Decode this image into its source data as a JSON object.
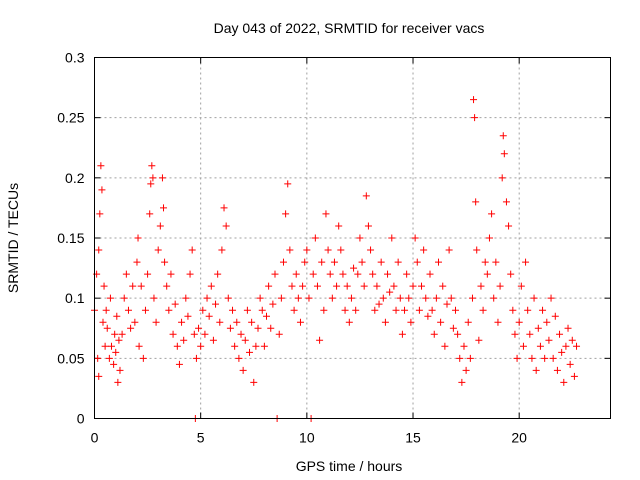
{
  "chart_data": {
    "type": "scatter",
    "title": "Day 043 of 2022, SRMTID for receiver vacs",
    "xlabel": "GPS time / hours",
    "ylabel": "SRMTID / TECUs",
    "xlim": [
      0,
      24.3
    ],
    "ylim": [
      0,
      0.3
    ],
    "xticks": [
      0,
      5,
      10,
      15,
      20
    ],
    "xtick_labels": [
      "0",
      "5",
      "10",
      "15",
      "20"
    ],
    "yticks": [
      0,
      0.05,
      0.1,
      0.15,
      0.2,
      0.25,
      0.3
    ],
    "ytick_labels": [
      "0",
      "0.05",
      "0.1",
      "0.15",
      "0.2",
      "0.25",
      "0.3"
    ],
    "grid": true,
    "marker": "+",
    "color": "#ff0000",
    "series": [
      {
        "name": "SRMTID",
        "points": [
          [
            0.0,
            0.09
          ],
          [
            0.1,
            0.12
          ],
          [
            0.15,
            0.05
          ],
          [
            0.2,
            0.14
          ],
          [
            0.2,
            0.035
          ],
          [
            0.25,
            0.17
          ],
          [
            0.3,
            0.21
          ],
          [
            0.35,
            0.19
          ],
          [
            0.4,
            0.08
          ],
          [
            0.45,
            0.11
          ],
          [
            0.5,
            0.06
          ],
          [
            0.55,
            0.09
          ],
          [
            0.6,
            0.075
          ],
          [
            0.7,
            0.05
          ],
          [
            0.75,
            0.1
          ],
          [
            0.8,
            0.06
          ],
          [
            0.9,
            0.045
          ],
          [
            0.95,
            0.07
          ],
          [
            1.0,
            0.055
          ],
          [
            1.05,
            0.085
          ],
          [
            1.1,
            0.03
          ],
          [
            1.15,
            0.065
          ],
          [
            1.2,
            0.04
          ],
          [
            1.3,
            0.07
          ],
          [
            1.4,
            0.1
          ],
          [
            1.5,
            0.12
          ],
          [
            1.6,
            0.09
          ],
          [
            1.7,
            0.075
          ],
          [
            1.8,
            0.11
          ],
          [
            1.9,
            0.08
          ],
          [
            2.0,
            0.13
          ],
          [
            2.05,
            0.15
          ],
          [
            2.1,
            0.06
          ],
          [
            2.2,
            0.11
          ],
          [
            2.3,
            0.05
          ],
          [
            2.4,
            0.09
          ],
          [
            2.5,
            0.12
          ],
          [
            2.6,
            0.17
          ],
          [
            2.65,
            0.195
          ],
          [
            2.7,
            0.21
          ],
          [
            2.75,
            0.2
          ],
          [
            2.8,
            0.1
          ],
          [
            2.9,
            0.08
          ],
          [
            3.0,
            0.14
          ],
          [
            3.1,
            0.16
          ],
          [
            3.2,
            0.2
          ],
          [
            3.25,
            0.175
          ],
          [
            3.3,
            0.13
          ],
          [
            3.4,
            0.11
          ],
          [
            3.5,
            0.09
          ],
          [
            3.6,
            0.12
          ],
          [
            3.7,
            0.07
          ],
          [
            3.8,
            0.095
          ],
          [
            3.9,
            0.06
          ],
          [
            4.0,
            0.045
          ],
          [
            4.1,
            0.08
          ],
          [
            4.2,
            0.065
          ],
          [
            4.3,
            0.1
          ],
          [
            4.4,
            0.085
          ],
          [
            4.5,
            0.12
          ],
          [
            4.6,
            0.14
          ],
          [
            4.7,
            0.07
          ],
          [
            4.75,
            0.0
          ],
          [
            4.8,
            0.05
          ],
          [
            4.9,
            0.075
          ],
          [
            5.0,
            0.06
          ],
          [
            5.1,
            0.09
          ],
          [
            5.2,
            0.07
          ],
          [
            5.3,
            0.1
          ],
          [
            5.4,
            0.085
          ],
          [
            5.5,
            0.11
          ],
          [
            5.6,
            0.065
          ],
          [
            5.7,
            0.095
          ],
          [
            5.8,
            0.12
          ],
          [
            5.9,
            0.08
          ],
          [
            6.0,
            0.14
          ],
          [
            6.1,
            0.175
          ],
          [
            6.2,
            0.16
          ],
          [
            6.3,
            0.1
          ],
          [
            6.4,
            0.075
          ],
          [
            6.5,
            0.09
          ],
          [
            6.6,
            0.06
          ],
          [
            6.7,
            0.08
          ],
          [
            6.8,
            0.05
          ],
          [
            6.9,
            0.07
          ],
          [
            7.0,
            0.04
          ],
          [
            7.1,
            0.065
          ],
          [
            7.2,
            0.09
          ],
          [
            7.3,
            0.055
          ],
          [
            7.4,
            0.08
          ],
          [
            7.5,
            0.03
          ],
          [
            7.6,
            0.06
          ],
          [
            7.7,
            0.075
          ],
          [
            7.8,
            0.1
          ],
          [
            7.9,
            0.09
          ],
          [
            8.0,
            0.06
          ],
          [
            8.1,
            0.085
          ],
          [
            8.2,
            0.11
          ],
          [
            8.3,
            0.075
          ],
          [
            8.4,
            0.095
          ],
          [
            8.5,
            0.12
          ],
          [
            8.6,
            0.0
          ],
          [
            8.7,
            0.07
          ],
          [
            8.8,
            0.1
          ],
          [
            8.9,
            0.13
          ],
          [
            9.0,
            0.17
          ],
          [
            9.1,
            0.195
          ],
          [
            9.2,
            0.14
          ],
          [
            9.3,
            0.11
          ],
          [
            9.4,
            0.09
          ],
          [
            9.5,
            0.12
          ],
          [
            9.6,
            0.1
          ],
          [
            9.7,
            0.08
          ],
          [
            9.8,
            0.11
          ],
          [
            9.9,
            0.13
          ],
          [
            10.0,
            0.14
          ],
          [
            10.1,
            0.1
          ],
          [
            10.2,
            0.0
          ],
          [
            10.3,
            0.12
          ],
          [
            10.4,
            0.15
          ],
          [
            10.5,
            0.11
          ],
          [
            10.6,
            0.065
          ],
          [
            10.7,
            0.13
          ],
          [
            10.8,
            0.09
          ],
          [
            10.9,
            0.17
          ],
          [
            11.0,
            0.14
          ],
          [
            11.1,
            0.12
          ],
          [
            11.2,
            0.1
          ],
          [
            11.3,
            0.13
          ],
          [
            11.4,
            0.11
          ],
          [
            11.5,
            0.16
          ],
          [
            11.6,
            0.14
          ],
          [
            11.7,
            0.12
          ],
          [
            11.8,
            0.09
          ],
          [
            11.9,
            0.11
          ],
          [
            12.0,
            0.08
          ],
          [
            12.1,
            0.1
          ],
          [
            12.2,
            0.125
          ],
          [
            12.3,
            0.09
          ],
          [
            12.4,
            0.12
          ],
          [
            12.5,
            0.15
          ],
          [
            12.6,
            0.13
          ],
          [
            12.7,
            0.11
          ],
          [
            12.8,
            0.185
          ],
          [
            12.9,
            0.16
          ],
          [
            13.0,
            0.14
          ],
          [
            13.1,
            0.12
          ],
          [
            13.2,
            0.09
          ],
          [
            13.3,
            0.11
          ],
          [
            13.4,
            0.095
          ],
          [
            13.5,
            0.13
          ],
          [
            13.6,
            0.1
          ],
          [
            13.7,
            0.08
          ],
          [
            13.8,
            0.12
          ],
          [
            13.9,
            0.105
          ],
          [
            14.0,
            0.15
          ],
          [
            14.1,
            0.11
          ],
          [
            14.2,
            0.09
          ],
          [
            14.3,
            0.13
          ],
          [
            14.4,
            0.1
          ],
          [
            14.5,
            0.07
          ],
          [
            14.6,
            0.09
          ],
          [
            14.7,
            0.12
          ],
          [
            14.8,
            0.1
          ],
          [
            14.9,
            0.08
          ],
          [
            15.0,
            0.11
          ],
          [
            15.1,
            0.15
          ],
          [
            15.2,
            0.13
          ],
          [
            15.3,
            0.09
          ],
          [
            15.4,
            0.11
          ],
          [
            15.5,
            0.14
          ],
          [
            15.6,
            0.1
          ],
          [
            15.7,
            0.085
          ],
          [
            15.8,
            0.12
          ],
          [
            15.9,
            0.09
          ],
          [
            16.0,
            0.07
          ],
          [
            16.1,
            0.1
          ],
          [
            16.2,
            0.13
          ],
          [
            16.3,
            0.08
          ],
          [
            16.4,
            0.11
          ],
          [
            16.5,
            0.06
          ],
          [
            16.6,
            0.095
          ],
          [
            16.7,
            0.14
          ],
          [
            16.8,
            0.1
          ],
          [
            16.9,
            0.075
          ],
          [
            17.0,
            0.09
          ],
          [
            17.1,
            0.07
          ],
          [
            17.2,
            0.05
          ],
          [
            17.3,
            0.03
          ],
          [
            17.4,
            0.06
          ],
          [
            17.5,
            0.04
          ],
          [
            17.6,
            0.08
          ],
          [
            17.7,
            0.05
          ],
          [
            17.8,
            0.1
          ],
          [
            17.85,
            0.265
          ],
          [
            17.9,
            0.25
          ],
          [
            17.95,
            0.18
          ],
          [
            18.0,
            0.14
          ],
          [
            18.1,
            0.065
          ],
          [
            18.2,
            0.11
          ],
          [
            18.3,
            0.09
          ],
          [
            18.4,
            0.13
          ],
          [
            18.5,
            0.12
          ],
          [
            18.6,
            0.15
          ],
          [
            18.7,
            0.17
          ],
          [
            18.8,
            0.1
          ],
          [
            18.9,
            0.13
          ],
          [
            19.0,
            0.08
          ],
          [
            19.1,
            0.11
          ],
          [
            19.2,
            0.2
          ],
          [
            19.25,
            0.235
          ],
          [
            19.3,
            0.22
          ],
          [
            19.4,
            0.18
          ],
          [
            19.5,
            0.16
          ],
          [
            19.6,
            0.12
          ],
          [
            19.7,
            0.09
          ],
          [
            19.8,
            0.07
          ],
          [
            19.9,
            0.05
          ],
          [
            20.0,
            0.08
          ],
          [
            20.1,
            0.11
          ],
          [
            20.2,
            0.06
          ],
          [
            20.3,
            0.13
          ],
          [
            20.4,
            0.09
          ],
          [
            20.5,
            0.07
          ],
          [
            20.6,
            0.05
          ],
          [
            20.7,
            0.1
          ],
          [
            20.8,
            0.04
          ],
          [
            20.9,
            0.075
          ],
          [
            21.0,
            0.06
          ],
          [
            21.1,
            0.09
          ],
          [
            21.2,
            0.05
          ],
          [
            21.3,
            0.08
          ],
          [
            21.4,
            0.065
          ],
          [
            21.5,
            0.1
          ],
          [
            21.6,
            0.05
          ],
          [
            21.7,
            0.085
          ],
          [
            21.8,
            0.04
          ],
          [
            21.9,
            0.07
          ],
          [
            22.0,
            0.055
          ],
          [
            22.1,
            0.03
          ],
          [
            22.2,
            0.06
          ],
          [
            22.3,
            0.075
          ],
          [
            22.4,
            0.045
          ],
          [
            22.5,
            0.065
          ],
          [
            22.6,
            0.035
          ],
          [
            22.7,
            0.06
          ]
        ]
      }
    ]
  }
}
